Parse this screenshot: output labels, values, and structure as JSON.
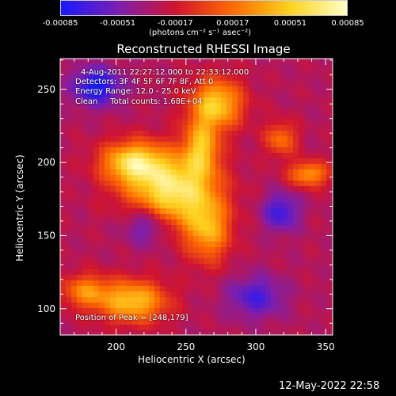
{
  "chart_data": {
    "type": "heatmap",
    "title": "Reconstructed RHESSI Image",
    "xlabel": "Heliocentric X (arcsec)",
    "ylabel": "Heliocentric Y (arcsec)",
    "xlim": [
      160,
      355
    ],
    "ylim": [
      82,
      271
    ],
    "x_ticks": [
      200,
      250,
      300,
      350
    ],
    "y_ticks": [
      100,
      150,
      200,
      250
    ],
    "colorbar": {
      "min": -0.00085,
      "max": 0.00085,
      "tick_values": [
        -0.00085,
        -0.00051,
        -0.00017,
        0.00017,
        0.00051,
        0.00085
      ],
      "tick_labels": [
        "-0.00085",
        "-0.00051",
        "-0.00017",
        "0.00017",
        "0.00051",
        "0.00085"
      ],
      "unit_label": "(photons cm⁻² s⁻¹ asec⁻²)",
      "colormap": [
        "#1a1aff",
        "#7b1fb0",
        "#d01430",
        "#ff6a00",
        "#ffd21f",
        "#ffffc8"
      ]
    },
    "annotations": {
      "time_range": "4-Aug-2011 22:27:12.000 to 22:33:12.000",
      "detectors": "Detectors: 3F 4F 5F 6F 7F 8F, Att 0",
      "energy": "Energy Range: 12.0 - 25.0 keV",
      "clean": "Clean     Total counts: 1.68E+04",
      "peak": "Position of Peak = [248,179]"
    },
    "peak": {
      "x": 248,
      "y": 179,
      "value": 0.00085
    },
    "sources": [
      {
        "x": 240,
        "y": 180,
        "sigma_x": 22,
        "sigma_y": 17,
        "value": 0.00085
      },
      {
        "x": 212,
        "y": 200,
        "sigma_x": 16,
        "sigma_y": 10,
        "value": 0.0007
      },
      {
        "x": 272,
        "y": 240,
        "sigma_x": 13,
        "sigma_y": 12,
        "value": 0.00068
      },
      {
        "x": 261,
        "y": 210,
        "sigma_x": 9,
        "sigma_y": 14,
        "value": 0.00055
      },
      {
        "x": 266,
        "y": 153,
        "sigma_x": 11,
        "sigma_y": 15,
        "value": 0.0005
      },
      {
        "x": 212,
        "y": 105,
        "sigma_x": 17,
        "sigma_y": 10,
        "value": 0.00065
      },
      {
        "x": 178,
        "y": 112,
        "sigma_x": 12,
        "sigma_y": 8,
        "value": 0.0004
      },
      {
        "x": 338,
        "y": 192,
        "sigma_x": 10,
        "sigma_y": 6,
        "value": 0.0005
      },
      {
        "x": 318,
        "y": 216,
        "sigma_x": 8,
        "sigma_y": 8,
        "value": 0.00035
      },
      {
        "x": 186,
        "y": 252,
        "sigma_x": 12,
        "sigma_y": 9,
        "value": -0.0006
      },
      {
        "x": 222,
        "y": 158,
        "sigma_x": 12,
        "sigma_y": 10,
        "value": -0.00045
      },
      {
        "x": 318,
        "y": 166,
        "sigma_x": 9,
        "sigma_y": 9,
        "value": -0.00045
      },
      {
        "x": 300,
        "y": 108,
        "sigma_x": 14,
        "sigma_y": 10,
        "value": -0.0004
      }
    ]
  },
  "footer": {
    "timestamp": "12-May-2022 22:58"
  }
}
